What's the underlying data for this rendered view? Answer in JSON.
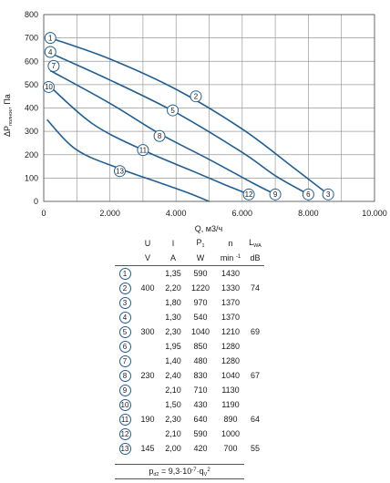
{
  "chart_data": {
    "type": "line",
    "xlabel": "Q, м3/ч",
    "ylabel": "P",
    "ylabel_sub": "полное",
    "ylabel_prefix": "Δ",
    "ylabel_unit": ", Па",
    "xlim": [
      0,
      10000
    ],
    "ylim": [
      0,
      800
    ],
    "x_ticks": [
      "0",
      "2.000",
      "4.000",
      "6.000",
      "8.000",
      "10.000"
    ],
    "y_ticks": [
      "0",
      "100",
      "200",
      "300",
      "400",
      "500",
      "600",
      "700",
      "800"
    ],
    "grid": true,
    "line_color": "#1f5f96",
    "series": [
      {
        "name": "2",
        "label_point": [
          4600,
          450
        ],
        "x": [
          200,
          2000,
          4000,
          6000,
          7500,
          8600
        ],
        "y": [
          700,
          610,
          480,
          310,
          150,
          30
        ]
      },
      {
        "name": "5",
        "label_point": [
          3900,
          390
        ],
        "x": [
          200,
          2000,
          4000,
          6000,
          7000,
          8000
        ],
        "y": [
          635,
          520,
          380,
          210,
          110,
          30
        ]
      },
      {
        "name": "8",
        "label_point": [
          3500,
          280
        ],
        "x": [
          200,
          2000,
          3500,
          5000,
          6300,
          7000
        ],
        "y": [
          560,
          420,
          290,
          180,
          80,
          30
        ]
      },
      {
        "name": "11",
        "label_point": [
          3000,
          220
        ],
        "x": [
          200,
          1500,
          3000,
          4500,
          5500,
          6200
        ],
        "y": [
          490,
          330,
          220,
          130,
          70,
          30
        ]
      },
      {
        "name": "13",
        "label_point": [
          2300,
          130
        ],
        "x": [
          100,
          1000,
          2300,
          3500,
          4300,
          5000
        ],
        "y": [
          350,
          220,
          140,
          80,
          40,
          0
        ]
      }
    ],
    "markers": [
      {
        "label": "1",
        "x": 200,
        "y": 700
      },
      {
        "label": "4",
        "x": 200,
        "y": 640
      },
      {
        "label": "7",
        "x": 300,
        "y": 580
      },
      {
        "label": "10",
        "x": 150,
        "y": 490
      },
      {
        "label": "2",
        "x": 4600,
        "y": 450
      },
      {
        "label": "5",
        "x": 3900,
        "y": 390
      },
      {
        "label": "8",
        "x": 3500,
        "y": 280
      },
      {
        "label": "11",
        "x": 3000,
        "y": 220
      },
      {
        "label": "13",
        "x": 2300,
        "y": 130
      },
      {
        "label": "3",
        "x": 8600,
        "y": 30
      },
      {
        "label": "6",
        "x": 8000,
        "y": 30
      },
      {
        "label": "9",
        "x": 7000,
        "y": 30
      },
      {
        "label": "12",
        "x": 6200,
        "y": 30
      }
    ]
  },
  "table": {
    "headers": [
      "U",
      "I",
      "P",
      "n",
      "L"
    ],
    "header_subs": [
      "",
      "",
      "1",
      "",
      "WA"
    ],
    "units": [
      "V",
      "A",
      "W",
      "min",
      "dB"
    ],
    "unit_sup": "-1",
    "rows": [
      {
        "num": "1",
        "U": "",
        "I": "1,35",
        "P": "590",
        "n": "1430",
        "L": ""
      },
      {
        "num": "2",
        "U": "400",
        "I": "2,20",
        "P": "1220",
        "n": "1330",
        "L": "74"
      },
      {
        "num": "3",
        "U": "",
        "I": "1,80",
        "P": "970",
        "n": "1370",
        "L": ""
      },
      {
        "num": "4",
        "U": "",
        "I": "1,30",
        "P": "540",
        "n": "1370",
        "L": ""
      },
      {
        "num": "5",
        "U": "300",
        "I": "2,30",
        "P": "1040",
        "n": "1210",
        "L": "69"
      },
      {
        "num": "6",
        "U": "",
        "I": "1,95",
        "P": "850",
        "n": "1280",
        "L": ""
      },
      {
        "num": "7",
        "U": "",
        "I": "1,40",
        "P": "480",
        "n": "1280",
        "L": ""
      },
      {
        "num": "8",
        "U": "230",
        "I": "2,40",
        "P": "830",
        "n": "1040",
        "L": "67"
      },
      {
        "num": "9",
        "U": "",
        "I": "2,10",
        "P": "710",
        "n": "1130",
        "L": ""
      },
      {
        "num": "10",
        "U": "",
        "I": "1,50",
        "P": "430",
        "n": "1190",
        "L": ""
      },
      {
        "num": "11",
        "U": "190",
        "I": "2,30",
        "P": "640",
        "n": "890",
        "L": "64"
      },
      {
        "num": "12",
        "U": "",
        "I": "2,10",
        "P": "590",
        "n": "1000",
        "L": ""
      },
      {
        "num": "13",
        "U": "145",
        "I": "2,00",
        "P": "420",
        "n": "700",
        "L": "55"
      }
    ]
  },
  "formula": {
    "lhs": "p",
    "lhs_sub": "d2",
    "eq": " = ",
    "coef": "9,3·10",
    "exp": "-7",
    "rest": "·q",
    "rest_sub": "V",
    "rest_sup": "2"
  }
}
